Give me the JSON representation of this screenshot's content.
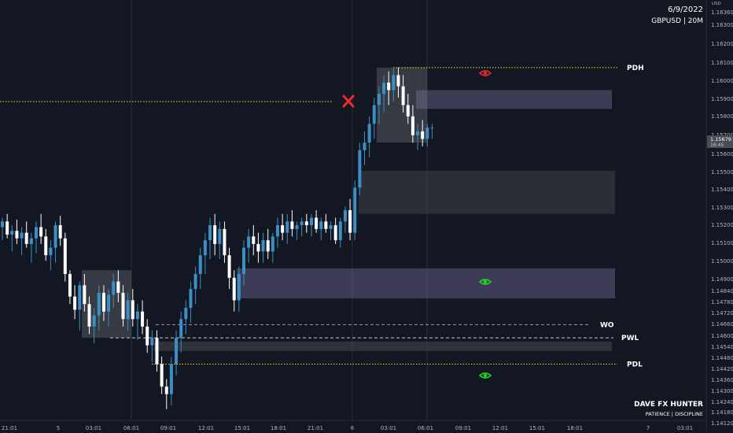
{
  "header": {
    "date": "6/9/2022",
    "symbol_tf": "GBPUSD | 20M"
  },
  "branding": {
    "name": "DAVE FX HUNTER",
    "motto": "PATIENCE | DISCIPLINE"
  },
  "price_axis": {
    "unit": "USD",
    "ticks": [
      "1.16360",
      "1.16300",
      "1.16200",
      "1.16100",
      "1.16000",
      "1.15900",
      "1.15800",
      "1.15700",
      "1.15600",
      "1.15500",
      "1.15400",
      "1.15300",
      "1.15200",
      "1.15100",
      "1.15000",
      "1.14900",
      "1.14840",
      "1.14780",
      "1.14720",
      "1.14660",
      "1.14600",
      "1.14540",
      "1.14480",
      "1.14420",
      "1.14360",
      "1.14300",
      "1.14240",
      "1.14180",
      "1.14120"
    ],
    "current_price": "1.15679",
    "countdown": "16:45"
  },
  "time_axis": [
    "21:01",
    "5",
    "03:01",
    "06:01",
    "09:01",
    "12:01",
    "15:01",
    "18:01",
    "21:01",
    "6",
    "03:01",
    "06:01",
    "09:01",
    "12:01",
    "15:01",
    "18:01",
    "7",
    "03:01"
  ],
  "levels": {
    "pdh": "PDH",
    "wo": "WO",
    "pwl": "PWL",
    "pdl": "PDL"
  },
  "colors": {
    "background": "#131722",
    "bull": "#3b8fc4",
    "bear": "#ffffff",
    "pdh_line": "#e7e03a",
    "supply_zone": "#4a4560",
    "demand_zone": "#2a2d33",
    "eye_red": "#e8262a",
    "eye_green": "#1fd61f",
    "cross": "#ef2b2b"
  },
  "icons": [
    "red-eye-icon",
    "green-eye-icon",
    "red-cross-icon"
  ],
  "chart_data": {
    "type": "candlestick",
    "symbol": "GBPUSD",
    "timeframe": "20M",
    "y_range": [
      1.1412,
      1.1636
    ],
    "candles": [
      [
        1.1515,
        1.152,
        1.1508,
        1.1518
      ],
      [
        1.1518,
        1.1522,
        1.1509,
        1.1511
      ],
      [
        1.1511,
        1.1516,
        1.1502,
        1.1513
      ],
      [
        1.1513,
        1.1519,
        1.1506,
        1.1509
      ],
      [
        1.1509,
        1.1515,
        1.15,
        1.1512
      ],
      [
        1.1512,
        1.1518,
        1.1504,
        1.1506
      ],
      [
        1.1506,
        1.1512,
        1.1496,
        1.1509
      ],
      [
        1.1509,
        1.1518,
        1.1501,
        1.1515
      ],
      [
        1.1515,
        1.1522,
        1.1506,
        1.151
      ],
      [
        1.151,
        1.1514,
        1.1497,
        1.15
      ],
      [
        1.15,
        1.1508,
        1.1492,
        1.1504
      ],
      [
        1.1504,
        1.1518,
        1.1496,
        1.1516
      ],
      [
        1.1516,
        1.1521,
        1.1505,
        1.1509
      ],
      [
        1.1509,
        1.1512,
        1.1486,
        1.149
      ],
      [
        1.149,
        1.1492,
        1.1474,
        1.1478
      ],
      [
        1.1478,
        1.1484,
        1.1466,
        1.1471
      ],
      [
        1.1471,
        1.1486,
        1.146,
        1.1484
      ],
      [
        1.1484,
        1.149,
        1.147,
        1.1474
      ],
      [
        1.1474,
        1.1478,
        1.1458,
        1.1462
      ],
      [
        1.1462,
        1.1472,
        1.1453,
        1.1468
      ],
      [
        1.1468,
        1.1484,
        1.146,
        1.148
      ],
      [
        1.148,
        1.1484,
        1.1465,
        1.147
      ],
      [
        1.147,
        1.1482,
        1.1462,
        1.1479
      ],
      [
        1.1479,
        1.149,
        1.1472,
        1.1486
      ],
      [
        1.1486,
        1.1492,
        1.1475,
        1.148
      ],
      [
        1.148,
        1.1484,
        1.1462,
        1.1466
      ],
      [
        1.1466,
        1.148,
        1.146,
        1.1476
      ],
      [
        1.1476,
        1.1482,
        1.1462,
        1.1466
      ],
      [
        1.1466,
        1.1474,
        1.1455,
        1.147
      ],
      [
        1.147,
        1.1476,
        1.1458,
        1.1462
      ],
      [
        1.1462,
        1.1466,
        1.1448,
        1.1452
      ],
      [
        1.1452,
        1.146,
        1.1443,
        1.1456
      ],
      [
        1.1456,
        1.146,
        1.1438,
        1.1442
      ],
      [
        1.1442,
        1.1446,
        1.1426,
        1.143
      ],
      [
        1.143,
        1.1434,
        1.1418,
        1.1426
      ],
      [
        1.1426,
        1.1446,
        1.142,
        1.1442
      ],
      [
        1.1442,
        1.146,
        1.1436,
        1.1456
      ],
      [
        1.1456,
        1.147,
        1.1448,
        1.1466
      ],
      [
        1.1466,
        1.1476,
        1.1458,
        1.1472
      ],
      [
        1.1472,
        1.1486,
        1.1464,
        1.1482
      ],
      [
        1.1482,
        1.1494,
        1.1474,
        1.149
      ],
      [
        1.149,
        1.1504,
        1.1482,
        1.15
      ],
      [
        1.15,
        1.1512,
        1.149,
        1.1508
      ],
      [
        1.1508,
        1.152,
        1.1498,
        1.1516
      ],
      [
        1.1516,
        1.1522,
        1.15,
        1.1506
      ],
      [
        1.1506,
        1.1518,
        1.1498,
        1.1514
      ],
      [
        1.1514,
        1.1518,
        1.1496,
        1.15
      ],
      [
        1.15,
        1.1504,
        1.1482,
        1.1488
      ],
      [
        1.1488,
        1.1492,
        1.147,
        1.1476
      ],
      [
        1.1476,
        1.1494,
        1.147,
        1.149
      ],
      [
        1.149,
        1.1508,
        1.1484,
        1.1504
      ],
      [
        1.1504,
        1.1514,
        1.1496,
        1.151
      ],
      [
        1.151,
        1.1516,
        1.15,
        1.1506
      ],
      [
        1.1506,
        1.1512,
        1.1496,
        1.1502
      ],
      [
        1.1502,
        1.1512,
        1.1496,
        1.1508
      ],
      [
        1.1508,
        1.1514,
        1.1498,
        1.1502
      ],
      [
        1.1502,
        1.1512,
        1.1496,
        1.151
      ],
      [
        1.151,
        1.152,
        1.1504,
        1.1516
      ],
      [
        1.1516,
        1.1522,
        1.1508,
        1.1512
      ],
      [
        1.1512,
        1.1522,
        1.1506,
        1.1518
      ],
      [
        1.1518,
        1.1524,
        1.151,
        1.1514
      ],
      [
        1.1514,
        1.1518,
        1.1508,
        1.1516
      ],
      [
        1.1516,
        1.152,
        1.151,
        1.1518
      ],
      [
        1.1518,
        1.1522,
        1.1512,
        1.1516
      ],
      [
        1.1516,
        1.1522,
        1.151,
        1.152
      ],
      [
        1.152,
        1.1524,
        1.1512,
        1.1514
      ],
      [
        1.1514,
        1.152,
        1.1508,
        1.1518
      ],
      [
        1.1518,
        1.1522,
        1.1512,
        1.1514
      ],
      [
        1.1514,
        1.1518,
        1.1508,
        1.1516
      ],
      [
        1.1516,
        1.152,
        1.1506,
        1.1508
      ],
      [
        1.1508,
        1.152,
        1.1504,
        1.1518
      ],
      [
        1.1518,
        1.1526,
        1.1512,
        1.1524
      ],
      [
        1.1524,
        1.153,
        1.1508,
        1.1512
      ],
      [
        1.1512,
        1.154,
        1.1508,
        1.1536
      ],
      [
        1.1536,
        1.156,
        1.1532,
        1.1556
      ],
      [
        1.1556,
        1.1566,
        1.1548,
        1.156
      ],
      [
        1.156,
        1.1574,
        1.1552,
        1.157
      ],
      [
        1.157,
        1.1584,
        1.1562,
        1.158
      ],
      [
        1.158,
        1.159,
        1.157,
        1.1586
      ],
      [
        1.1586,
        1.1596,
        1.1576,
        1.1592
      ],
      [
        1.1592,
        1.1598,
        1.158,
        1.1588
      ],
      [
        1.1588,
        1.16,
        1.1582,
        1.1596
      ],
      [
        1.1596,
        1.16,
        1.1584,
        1.159
      ],
      [
        1.159,
        1.1596,
        1.1576,
        1.158
      ],
      [
        1.158,
        1.1586,
        1.157,
        1.1574
      ],
      [
        1.1574,
        1.158,
        1.156,
        1.1564
      ],
      [
        1.1564,
        1.157,
        1.1556,
        1.1566
      ],
      [
        1.1566,
        1.1572,
        1.1558,
        1.1562
      ],
      [
        1.1562,
        1.157,
        1.1558,
        1.1568
      ],
      [
        1.1568,
        1.157,
        1.1562,
        1.1568
      ]
    ],
    "zones": [
      {
        "name": "supply-zone-upper",
        "low": 1.1578,
        "high": 1.1588
      },
      {
        "name": "demand-zone-mid",
        "low": 1.1522,
        "high": 1.1545
      },
      {
        "name": "demand-zone-low",
        "low": 1.1477,
        "high": 1.1493
      },
      {
        "name": "box-left",
        "low": 1.1456,
        "high": 1.1492
      },
      {
        "name": "box-top",
        "low": 1.156,
        "high": 1.16
      },
      {
        "name": "lower-strip",
        "low": 1.1449,
        "high": 1.1454
      }
    ],
    "levels": [
      {
        "label": "PDH",
        "price": 1.16,
        "color": "#e7e03a",
        "style": "dotted"
      },
      {
        "label": "WO",
        "price": 1.1463,
        "color": "#9a9ca3",
        "style": "dashed"
      },
      {
        "label": "PWL",
        "price": 1.1456,
        "color": "#c8c8c8",
        "style": "dashed"
      },
      {
        "label": "PDL",
        "price": 1.1442,
        "color": "#e7e03a",
        "style": "dotted"
      }
    ],
    "old_level": {
      "price": 1.159,
      "color": "#e7e03a",
      "style": "dotted"
    }
  }
}
